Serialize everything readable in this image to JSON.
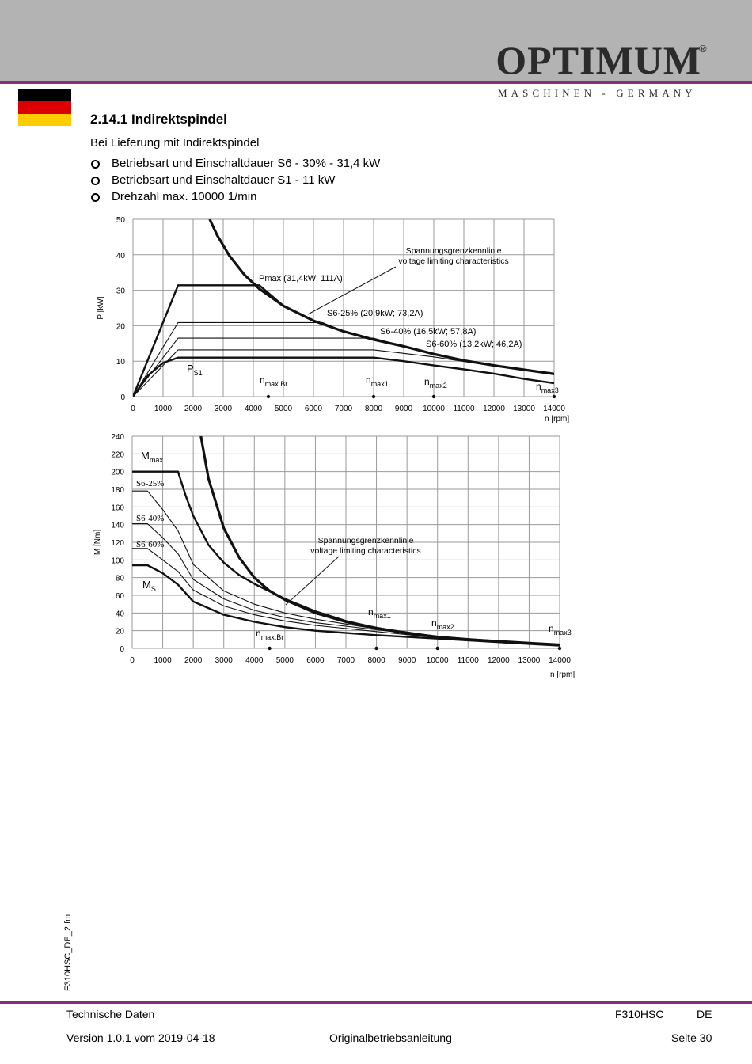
{
  "brand": {
    "name": "OPTIMUM",
    "registered": "®",
    "tagline": "MASCHINEN - GERMANY",
    "header_color": "#b3b3b3",
    "accent_color": "#8e2a7c"
  },
  "flag": {
    "colors": [
      "#000000",
      "#dd0000",
      "#ffcc00"
    ]
  },
  "section": {
    "title": "2.14.1 Indirektspindel",
    "intro": "Bei Lieferung mit Indirektspindel",
    "bullets": [
      "Betriebsart und Einschaltdauer S6 - 30% - 31,4 kW",
      "Betriebsart und Einschaltdauer S1 - 11 kW",
      "Drehzahl max. 10000 1/min"
    ]
  },
  "chart_data": [
    {
      "type": "line",
      "ylabel": "P [kW]",
      "xlabel": "n [rpm]",
      "xlim": [
        0,
        14000
      ],
      "ylim": [
        0,
        50
      ],
      "xticks": [
        "0",
        "1000",
        "2000",
        "3000",
        "4000",
        "5000",
        "6000",
        "7000",
        "8000",
        "9000",
        "10000",
        "11000",
        "12000",
        "13000",
        "14000"
      ],
      "yticks": [
        "0",
        "10",
        "20",
        "30",
        "40",
        "50"
      ],
      "grid": true,
      "series": [
        {
          "label": "voltage_limit",
          "bold": true,
          "x": [
            2550,
            2800,
            3200,
            3700,
            4200,
            5000,
            6000,
            7000,
            8000,
            9000,
            10000,
            11000,
            12000,
            13000,
            14000
          ],
          "y": [
            50,
            45.5,
            39.8,
            34.4,
            30.4,
            25.6,
            21.4,
            18.4,
            16.1,
            14.2,
            12,
            10.2,
            8.8,
            7.6,
            6.4
          ]
        },
        {
          "label": "Pmax",
          "bold": true,
          "x": [
            0,
            1500,
            4200,
            5000,
            6000,
            7000,
            8000,
            9000,
            10000,
            11000,
            12000,
            13000,
            14000
          ],
          "y": [
            0,
            31.4,
            31.4,
            25.6,
            21.4,
            18.4,
            16.1,
            14.2,
            12,
            10.2,
            8.8,
            7.6,
            6.4
          ]
        },
        {
          "label": "S6-25%",
          "bold": false,
          "x": [
            0,
            1500,
            6300,
            7000,
            8000,
            9000,
            10000,
            11000,
            12000,
            13000,
            14000
          ],
          "y": [
            0,
            20.9,
            20.9,
            18.4,
            16.1,
            14.2,
            12,
            10.2,
            8.8,
            7.6,
            6.4
          ]
        },
        {
          "label": "S6-40%",
          "bold": false,
          "x": [
            0,
            1500,
            8000,
            9000,
            10000,
            11000,
            12000,
            13000,
            14000
          ],
          "y": [
            0,
            16.5,
            16.5,
            14.2,
            12,
            10.2,
            8.8,
            7.6,
            6.4
          ]
        },
        {
          "label": "S6-60%",
          "bold": false,
          "x": [
            0,
            1500,
            8000,
            9000,
            10000,
            11000,
            12000,
            13000,
            14000
          ],
          "y": [
            0,
            13.2,
            13.2,
            12.2,
            11.2,
            9.9,
            8.6,
            7.5,
            6.2
          ]
        },
        {
          "label": "PS1",
          "bold": true,
          "x": [
            0,
            500,
            1000,
            1500,
            8000,
            9000,
            10000,
            11000,
            12000,
            13000,
            14000
          ],
          "y": [
            0,
            6,
            9.5,
            11,
            11,
            10,
            8.8,
            7.7,
            6.5,
            5,
            3.8
          ]
        }
      ],
      "annotations": {
        "pmax": "Pmax (31,4kW; 111A)",
        "s6_25": "S6-25% (20,9kW; 73,2A)",
        "s6_40": "S6-40% (16,5kW; 57,8A)",
        "s6_60": "S6-60% (13,2kW; 46,2A)",
        "ps1": "P",
        "ps1_sub": "S1",
        "limit_line1": "Spannungsgrenzkennlinie",
        "limit_line2": "voltage limiting characteristics",
        "nmaxbr": "n",
        "nmaxbr_sub": "max.Br",
        "nmax1": "n",
        "nmax1_sub": "max1",
        "nmax2": "n",
        "nmax2_sub": "max2",
        "nmax3": "n",
        "nmax3_sub": "max3"
      },
      "markers_x": [
        4500,
        8000,
        10000,
        14000
      ]
    },
    {
      "type": "line",
      "ylabel": "M [Nm]",
      "xlabel": "n [rpm]",
      "xlim": [
        0,
        14000
      ],
      "ylim": [
        0,
        240
      ],
      "xticks": [
        "0",
        "1000",
        "2000",
        "3000",
        "4000",
        "5000",
        "6000",
        "7000",
        "8000",
        "9000",
        "10000",
        "11000",
        "12000",
        "13000",
        "14000"
      ],
      "yticks": [
        "0",
        "20",
        "40",
        "60",
        "80",
        "100",
        "120",
        "140",
        "160",
        "180",
        "200",
        "220",
        "240"
      ],
      "grid": true,
      "series": [
        {
          "label": "voltage_limit",
          "bold": true,
          "x": [
            2250,
            2500,
            3000,
            3500,
            4000,
            4500,
            5000,
            6000,
            7000,
            8000,
            9000,
            10000,
            11000,
            12000,
            13000,
            14000
          ],
          "y": [
            240,
            192,
            136,
            103,
            80,
            65,
            55,
            40,
            30,
            23,
            17,
            13,
            10,
            8,
            6,
            4
          ]
        },
        {
          "label": "Mmax",
          "bold": true,
          "x": [
            0,
            1500,
            1750,
            2000,
            2500,
            3000,
            3500,
            4000,
            5000,
            6000,
            7000,
            8000,
            10000,
            12000,
            14000
          ],
          "y": [
            200,
            200,
            173,
            150,
            117,
            97,
            83,
            73,
            56,
            42,
            31,
            23,
            13,
            8,
            4
          ]
        },
        {
          "label": "S6-25%",
          "bold": false,
          "x": [
            0,
            500,
            1000,
            1500,
            2000,
            3000,
            4000,
            5000,
            6000,
            8000,
            10000,
            12000,
            14000
          ],
          "y": [
            178,
            178,
            157,
            133,
            95,
            65,
            50,
            40,
            33,
            22,
            13,
            8,
            4
          ]
        },
        {
          "label": "S6-40%",
          "bold": false,
          "x": [
            0,
            500,
            1000,
            1500,
            2000,
            3000,
            4000,
            5000,
            6000,
            8000,
            10000,
            12000,
            14000
          ],
          "y": [
            141,
            141,
            125,
            107,
            78,
            56,
            43,
            35,
            29,
            21,
            13,
            8,
            4
          ]
        },
        {
          "label": "S6-60%",
          "bold": false,
          "x": [
            0,
            500,
            1000,
            1500,
            2000,
            3000,
            4000,
            5000,
            6000,
            8000,
            10000,
            12000,
            14000
          ],
          "y": [
            113,
            113,
            100,
            87,
            66,
            48,
            38,
            31,
            26,
            19,
            12,
            8,
            4
          ]
        },
        {
          "label": "MS1",
          "bold": true,
          "x": [
            0,
            500,
            1000,
            1500,
            2000,
            3000,
            4000,
            5000,
            6000,
            8000,
            10000,
            12000,
            14000
          ],
          "y": [
            94,
            94,
            85,
            72,
            53,
            38,
            30,
            24,
            20,
            15,
            11,
            7,
            3
          ]
        }
      ],
      "annotations": {
        "mmax": "M",
        "mmax_sub": "max",
        "s6_25": "S6-25%",
        "s6_40": "S6-40%",
        "s6_60": "S6-60%",
        "ms1": "M",
        "ms1_sub": "S1",
        "limit_line1": "Spannungsgrenzkennlinie",
        "limit_line2": "voltage limiting characteristics",
        "nmaxbr": "n",
        "nmaxbr_sub": "max,Br",
        "nmax1": "n",
        "nmax1_sub": "max1",
        "nmax2": "n",
        "nmax2_sub": "max2",
        "nmax3": "n",
        "nmax3_sub": "max3"
      },
      "markers_x": [
        4500,
        8000,
        10000,
        14000
      ]
    }
  ],
  "side_label": "F310HSC_DE_2.fm",
  "footer": {
    "section": "Technische Daten",
    "model": "F310HSC",
    "lang": "DE",
    "version": "Version 1.0.1  vom 2019-04-18",
    "doc": "Originalbetriebsanleitung",
    "page": "Seite 30"
  }
}
